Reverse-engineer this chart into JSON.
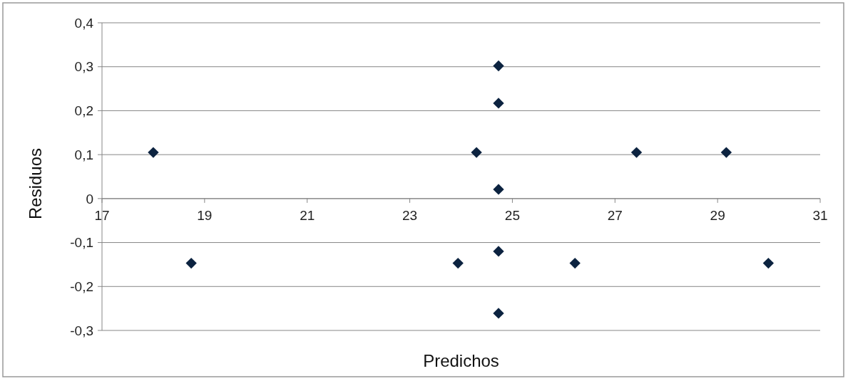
{
  "chart_data": {
    "type": "scatter",
    "xlabel": "Predichos",
    "ylabel": "Residuos",
    "x": [
      18.0,
      18.74,
      23.94,
      24.3,
      24.73,
      24.73,
      24.73,
      24.73,
      24.73,
      26.22,
      27.42,
      29.17,
      29.99
    ],
    "series": [
      {
        "color": "#0c2340",
        "values": [
          0.105,
          -0.147,
          -0.147,
          0.105,
          0.302,
          0.217,
          0.021,
          -0.12,
          -0.261,
          -0.147,
          0.105,
          0.105,
          -0.147
        ]
      }
    ],
    "xlim": [
      17,
      31
    ],
    "xticks": [
      17,
      19,
      21,
      23,
      25,
      27,
      29,
      31
    ],
    "ylim": [
      -0.3,
      0.4
    ],
    "yticks": [
      {
        "value": -0.3,
        "label": "-0,3"
      },
      {
        "value": -0.2,
        "label": "-0,2"
      },
      {
        "value": -0.1,
        "label": "-0,1"
      },
      {
        "value": 0,
        "label": "0"
      },
      {
        "value": 0.1,
        "label": "0,1"
      },
      {
        "value": 0.2,
        "label": "0,2"
      },
      {
        "value": 0.3,
        "label": "0,3"
      },
      {
        "value": 0.4,
        "label": "0,4"
      }
    ],
    "grid": "y",
    "marker": "diamond"
  }
}
